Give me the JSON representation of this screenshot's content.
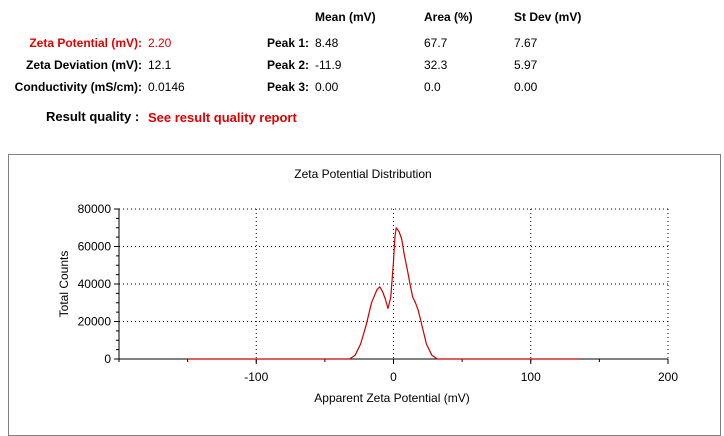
{
  "summary": {
    "zeta_potential": {
      "label": "Zeta Potential (mV):",
      "value": "2.20"
    },
    "zeta_deviation": {
      "label": "Zeta Deviation (mV):",
      "value": "12.1"
    },
    "conductivity": {
      "label": "Conductivity (mS/cm):",
      "value": "0.0146"
    }
  },
  "peaks": {
    "headers": {
      "mean": "Mean (mV)",
      "area": "Area (%)",
      "stdev": "St Dev (mV)"
    },
    "rows": [
      {
        "label": "Peak 1:",
        "mean": "8.48",
        "area": "67.7",
        "stdev": "7.67"
      },
      {
        "label": "Peak 2:",
        "mean": "-11.9",
        "area": "32.3",
        "stdev": "5.97"
      },
      {
        "label": "Peak 3:",
        "mean": "0.00",
        "area": "0.0",
        "stdev": "0.00"
      }
    ]
  },
  "result_quality": {
    "label": "Result quality :",
    "link": "See result quality report"
  },
  "colors": {
    "accent_red": "#e00000",
    "curve": "#cc0000"
  },
  "chart_data": {
    "type": "line",
    "title": "Zeta Potential Distribution",
    "xlabel": "Apparent Zeta Potential (mV)",
    "ylabel": "Total Counts",
    "xlim": [
      -200,
      200
    ],
    "ylim": [
      0,
      80000
    ],
    "x_ticks": [
      -100,
      0,
      100,
      200
    ],
    "y_ticks": [
      0,
      20000,
      40000,
      60000,
      80000
    ],
    "x_tick_labels": [
      "-100",
      "0",
      "100",
      "200"
    ],
    "y_tick_labels": [
      "0",
      "20000",
      "40000",
      "60000",
      "80000"
    ],
    "grid": true,
    "series": [
      {
        "x": [
          -150,
          -100,
          -60,
          -40,
          -32,
          -28,
          -24,
          -20,
          -16,
          -12,
          -10,
          -8,
          -6,
          -4,
          -2,
          0,
          1,
          2,
          3,
          4,
          6,
          8,
          10,
          12,
          14,
          16,
          18,
          20,
          24,
          28,
          32,
          36,
          40,
          60,
          100,
          135
        ],
        "y": [
          0,
          0,
          0,
          0,
          0,
          2000,
          8000,
          18000,
          30000,
          37000,
          38500,
          36000,
          32000,
          27000,
          33000,
          52000,
          65000,
          70000,
          69000,
          68000,
          64000,
          55000,
          48000,
          40000,
          33000,
          30000,
          26000,
          20000,
          8000,
          2000,
          0,
          0,
          0,
          0,
          0,
          0
        ]
      }
    ]
  }
}
